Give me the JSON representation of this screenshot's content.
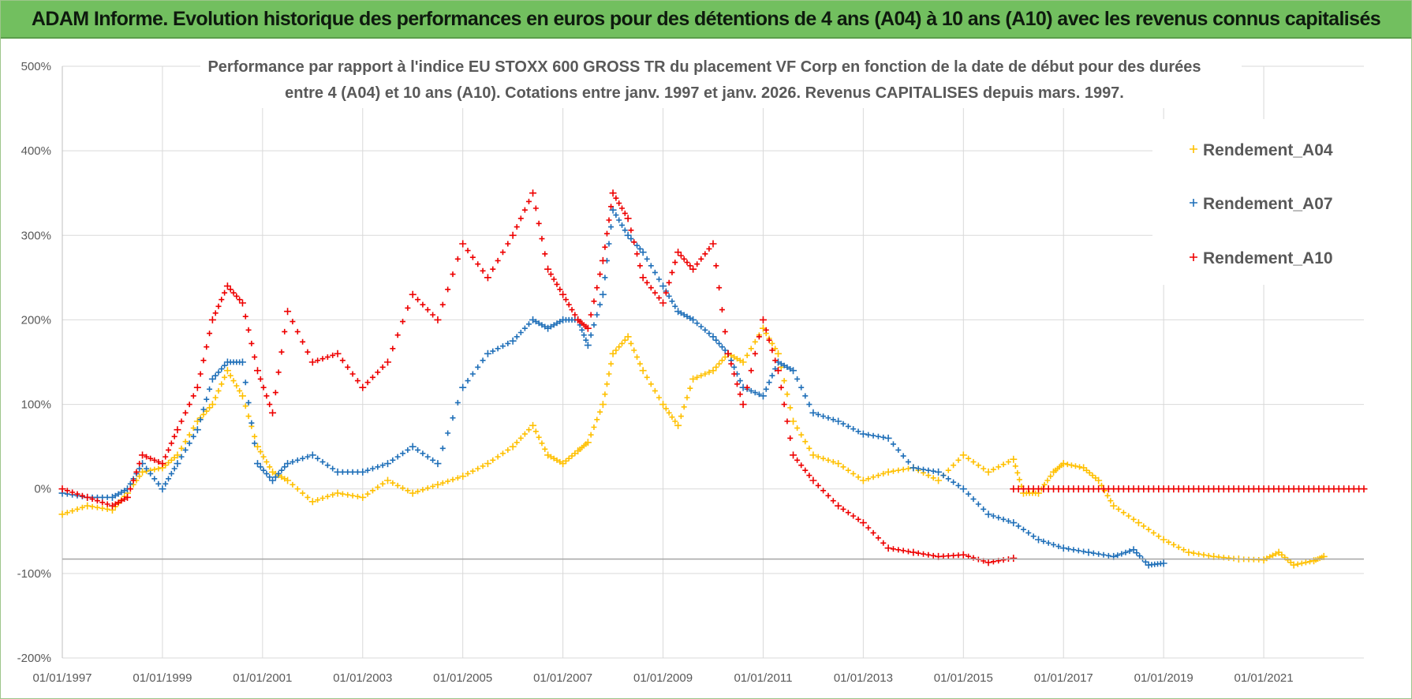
{
  "header": {
    "title": "ADAM Informe. Evolution historique des performances en euros pour des détentions de 4 ans (A04) à 10 ans (A10) avec les revenus connus capitalisés"
  },
  "colors": {
    "A04": "#ffc000",
    "A07": "#1f6fb8",
    "A10": "#ee0000",
    "banner": "#72bf5f",
    "grid": "#d9d9d9"
  },
  "chart_data": {
    "type": "scatter",
    "title_line1": "Performance par rapport à l'indice EU STOXX 600 GROSS TR  du placement VF Corp en fonction de la date de début pour des durées",
    "title_line2": "entre 4 (A04) et 10 ans (A10). Cotations entre janv. 1997 et janv. 2026. Revenus CAPITALISES depuis mars. 1997.",
    "xlabel": "",
    "ylabel": "",
    "xlim": [
      1997.0,
      2023.0
    ],
    "ylim": [
      -200,
      500
    ],
    "y_ticks": [
      -200,
      -100,
      0,
      100,
      200,
      300,
      400,
      500
    ],
    "y_tick_labels": [
      "-200%",
      "-100%",
      "0%",
      "100%",
      "200%",
      "300%",
      "400%",
      "500%"
    ],
    "x_ticks": [
      1997,
      1999,
      2001,
      2003,
      2005,
      2007,
      2009,
      2011,
      2013,
      2015,
      2017,
      2019,
      2021
    ],
    "x_tick_labels": [
      "01/01/1997",
      "01/01/1999",
      "01/01/2001",
      "01/01/2003",
      "01/01/2005",
      "01/01/2007",
      "01/01/2009",
      "01/01/2011",
      "01/01/2013",
      "01/01/2015",
      "01/01/2017",
      "01/01/2019",
      "01/01/2021"
    ],
    "reference_line_y": -83,
    "legend_position": "top-right",
    "series": [
      {
        "name": "Rendement_A04",
        "color_key": "A04",
        "x": [
          1997.0,
          1997.5,
          1998.0,
          1998.3,
          1998.6,
          1999.0,
          1999.3,
          1999.7,
          2000.0,
          2000.3,
          2000.6,
          2000.9,
          2001.2,
          2001.5,
          2002.0,
          2002.5,
          2003.0,
          2003.5,
          2004.0,
          2004.5,
          2005.0,
          2005.5,
          2006.0,
          2006.4,
          2006.7,
          2007.0,
          2007.3,
          2007.5,
          2007.8,
          2008.0,
          2008.3,
          2008.6,
          2009.0,
          2009.3,
          2009.6,
          2010.0,
          2010.3,
          2010.6,
          2011.0,
          2011.3,
          2011.6,
          2012.0,
          2012.5,
          2013.0,
          2013.5,
          2014.0,
          2014.5,
          2015.0,
          2015.5,
          2016.0,
          2016.2,
          2016.5,
          2016.8,
          2017.0,
          2017.4,
          2017.7,
          2018.0,
          2018.5,
          2019.0,
          2019.5,
          2020.0,
          2020.5,
          2021.0,
          2021.3,
          2021.6,
          2022.0,
          2022.2
        ],
        "y": [
          -30,
          -20,
          -25,
          -5,
          20,
          25,
          40,
          80,
          100,
          140,
          110,
          50,
          20,
          10,
          -15,
          -5,
          -10,
          10,
          -5,
          5,
          15,
          30,
          50,
          75,
          40,
          30,
          45,
          55,
          100,
          160,
          180,
          140,
          100,
          75,
          130,
          140,
          160,
          150,
          190,
          160,
          80,
          40,
          30,
          10,
          20,
          25,
          10,
          40,
          20,
          35,
          -5,
          -5,
          20,
          30,
          25,
          10,
          -20,
          -40,
          -60,
          -75,
          -80,
          -83,
          -84,
          -75,
          -90,
          -85,
          -80
        ]
      },
      {
        "name": "Rendement_A07",
        "color_key": "A07",
        "x": [
          1997.0,
          1997.5,
          1998.0,
          1998.3,
          1998.6,
          1999.0,
          1999.3,
          1999.7,
          2000.0,
          2000.3,
          2000.6,
          2000.9,
          2001.2,
          2001.5,
          2002.0,
          2002.5,
          2003.0,
          2003.5,
          2004.0,
          2004.5,
          2005.0,
          2005.5,
          2006.0,
          2006.4,
          2006.7,
          2007.0,
          2007.3,
          2007.5,
          2007.8,
          2008.0,
          2008.3,
          2008.6,
          2009.0,
          2009.3,
          2009.6,
          2010.0,
          2010.3,
          2010.6,
          2011.0,
          2011.3,
          2011.6,
          2012.0,
          2012.5,
          2013.0,
          2013.5,
          2014.0,
          2014.5,
          2015.0,
          2015.5,
          2016.0,
          2016.5,
          2017.0,
          2017.5,
          2018.0,
          2018.4,
          2018.7,
          2019.0
        ],
        "y": [
          -5,
          -10,
          -10,
          0,
          30,
          0,
          30,
          70,
          130,
          150,
          150,
          30,
          10,
          30,
          40,
          20,
          20,
          30,
          50,
          30,
          120,
          160,
          175,
          200,
          190,
          200,
          200,
          170,
          230,
          330,
          300,
          280,
          240,
          210,
          200,
          180,
          160,
          120,
          110,
          150,
          140,
          90,
          80,
          65,
          60,
          25,
          20,
          0,
          -30,
          -40,
          -60,
          -70,
          -75,
          -80,
          -72,
          -90,
          -88
        ]
      },
      {
        "name": "Rendement_A10",
        "color_key": "A10",
        "x": [
          1997.0,
          1997.5,
          1998.0,
          1998.3,
          1998.6,
          1999.0,
          1999.3,
          1999.7,
          2000.0,
          2000.3,
          2000.6,
          2000.9,
          2001.2,
          2001.5,
          2002.0,
          2002.5,
          2003.0,
          2003.5,
          2004.0,
          2004.5,
          2005.0,
          2005.5,
          2006.0,
          2006.4,
          2006.7,
          2007.0,
          2007.3,
          2007.5,
          2007.8,
          2008.0,
          2008.3,
          2008.6,
          2009.0,
          2009.3,
          2009.6,
          2010.0,
          2010.3,
          2010.6,
          2011.0,
          2011.3,
          2011.6,
          2012.0,
          2012.5,
          2013.0,
          2013.5,
          2014.0,
          2014.5,
          2015.0,
          2015.5,
          2016.0
        ],
        "y": [
          0,
          -10,
          -20,
          -10,
          40,
          30,
          70,
          120,
          200,
          240,
          220,
          140,
          90,
          210,
          150,
          160,
          120,
          150,
          230,
          200,
          290,
          250,
          300,
          350,
          260,
          230,
          200,
          190,
          270,
          350,
          320,
          250,
          220,
          280,
          260,
          290,
          160,
          100,
          200,
          140,
          40,
          10,
          -20,
          -40,
          -70,
          -75,
          -80,
          -78,
          -87,
          -82
        ]
      }
    ]
  }
}
